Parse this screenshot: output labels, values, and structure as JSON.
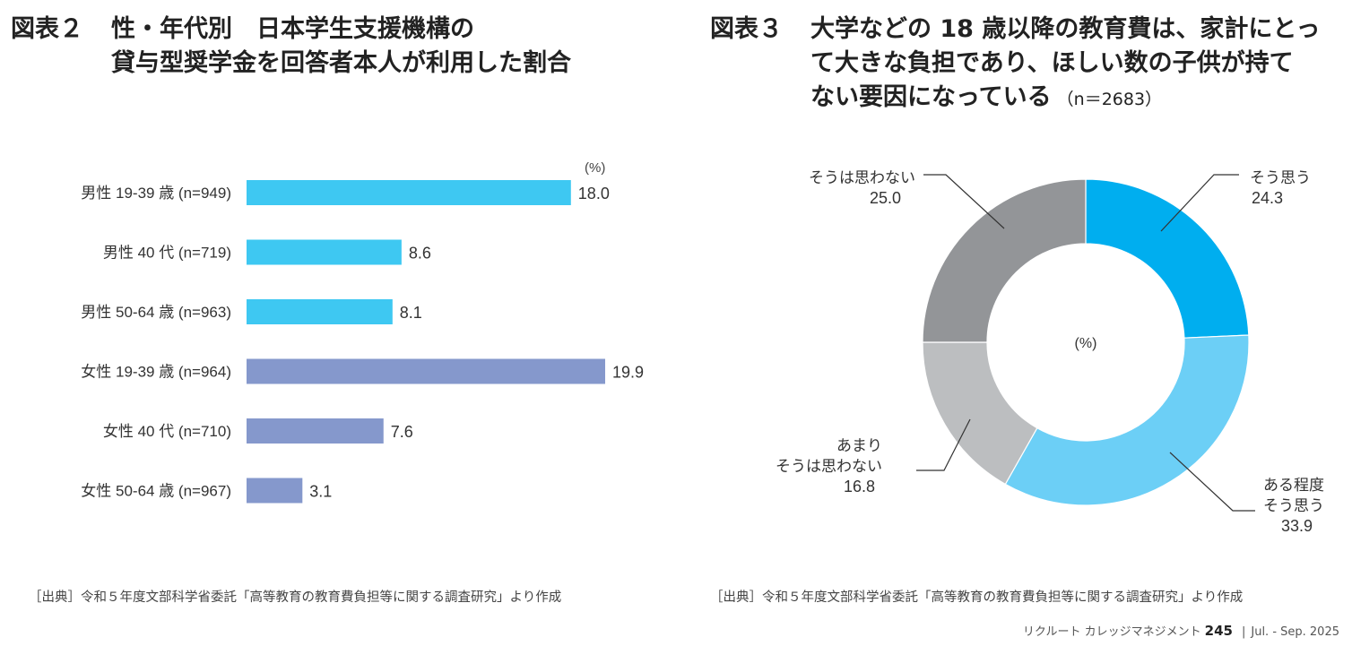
{
  "fig2": {
    "number": "図表２",
    "title_line1": "性・年代別　日本学生支援機構の",
    "title_line2": "貸与型奨学金を回答者本人が利用した割合",
    "source": "［出典］令和５年度文部科学省委託「高等教育の教育費負担等に関する調査研究」より作成"
  },
  "fig3": {
    "number": "図表３",
    "title_line1": "大学などの 18 歳以降の教育費は、家計にとっ",
    "title_line2": "て大きな負担であり、ほしい数の子供が持て",
    "title_line3": "ない要因になっている",
    "title_n": "（n＝2683）",
    "source": "［出典］令和５年度文部科学省委託「高等教育の教育費負担等に関する調査研究」より作成"
  },
  "footer": {
    "magazine": "リクルート カレッジマネジメント",
    "page": "245",
    "divider": "|",
    "issue": "Jul. - Sep. 2025"
  },
  "chart_data": [
    {
      "type": "bar",
      "orientation": "horizontal",
      "unit": "(%)",
      "categories": [
        "男性 19-39 歳 (n=949)",
        "男性 40 代  (n=719)",
        "男性 50-64 歳 (n=963)",
        "女性 19-39 歳 (n=964)",
        "女性 40 代 (n=710)",
        "女性 50-64 歳 (n=967)"
      ],
      "values": [
        18.0,
        8.6,
        8.1,
        19.9,
        7.6,
        3.1
      ],
      "value_labels": [
        "18.0",
        "8.6",
        "8.1",
        "19.9",
        "7.6",
        "3.1"
      ],
      "colors": [
        "#3ec8f2",
        "#3ec8f2",
        "#3ec8f2",
        "#8598cc",
        "#8598cc",
        "#8598cc"
      ],
      "xlim": [
        0,
        20
      ]
    },
    {
      "type": "pie",
      "donut": true,
      "unit": "(%)",
      "labels": [
        "そう思う",
        "ある程度そう思う",
        "あまりそう思わない",
        "そうは思わない"
      ],
      "label_lines": [
        [
          "そう思う"
        ],
        [
          "ある程度",
          "そう思う"
        ],
        [
          "あまり",
          "そうは思わない"
        ],
        [
          "そうは思わない"
        ]
      ],
      "values": [
        24.3,
        33.9,
        16.8,
        25.0
      ],
      "value_labels": [
        "24.3",
        "33.9",
        "16.8",
        "25.0"
      ],
      "colors": [
        "#00aeef",
        "#6ccff6",
        "#bcbec0",
        "#939598"
      ]
    }
  ]
}
